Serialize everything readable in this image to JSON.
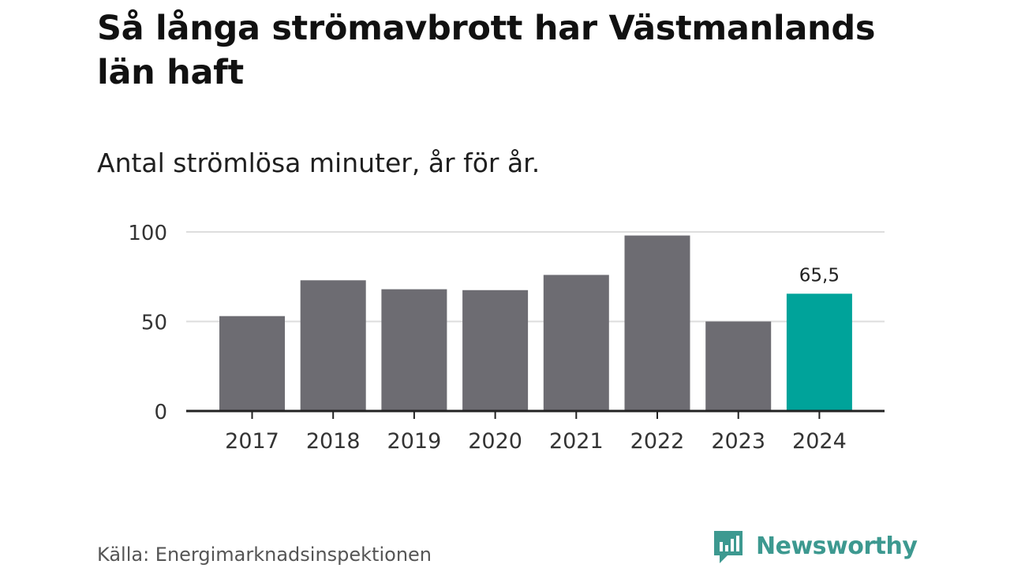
{
  "title": "Så långa strömavbrott har Västmanlands län haft",
  "subtitle": "Antal strömlösa minuter, år för år.",
  "source": "Källa: Energimarknadsinspektionen",
  "brand": {
    "name": "Newsworthy",
    "logo_icon": "bar-chart-speech-bubble-icon",
    "color": "#3d9990"
  },
  "colors": {
    "bar": "#6d6c72",
    "highlight": "#00a39a",
    "grid": "#dddddd",
    "axis": "#222222"
  },
  "chart_data": {
    "type": "bar",
    "title": "Så långa strömavbrott har Västmanlands län haft",
    "subtitle": "Antal strömlösa minuter, år för år.",
    "xlabel": "",
    "ylabel": "",
    "categories": [
      "2017",
      "2018",
      "2019",
      "2020",
      "2021",
      "2022",
      "2023",
      "2024"
    ],
    "values": [
      53,
      73,
      68,
      67.5,
      76,
      98,
      50,
      65.5
    ],
    "highlight_index": 7,
    "data_labels": [
      {
        "index": 7,
        "text": "65,5"
      }
    ],
    "ylim": [
      0,
      100
    ],
    "yticks": [
      0,
      50,
      100
    ],
    "ytick_labels": [
      "0",
      "50",
      "100"
    ],
    "grid": true,
    "legend": "none"
  }
}
